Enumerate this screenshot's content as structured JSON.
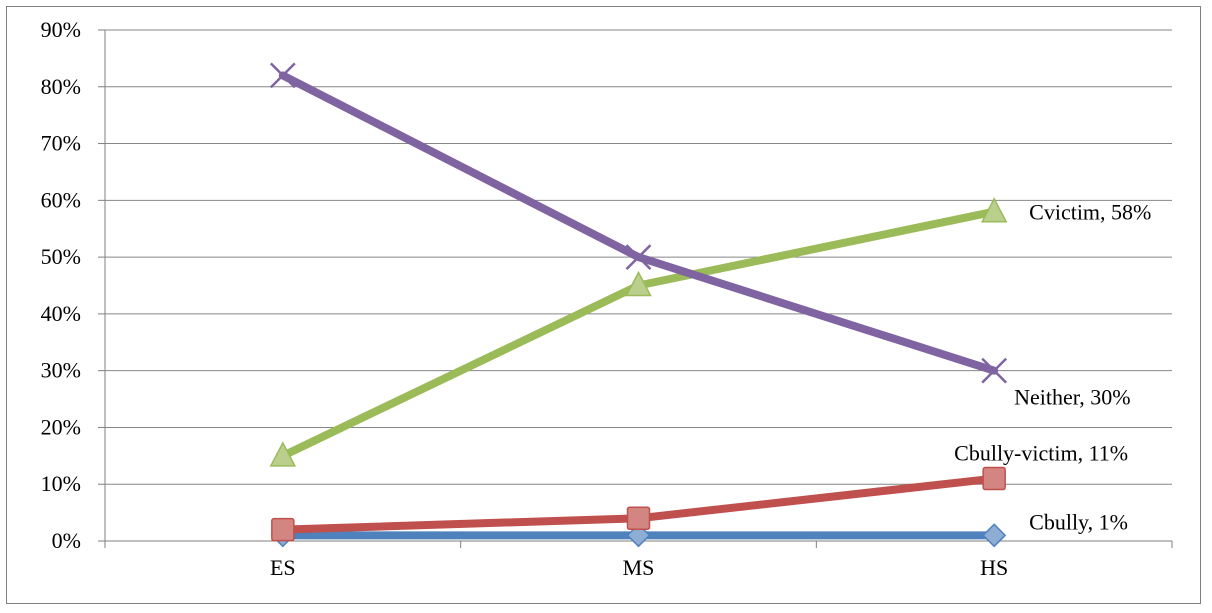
{
  "chart_data": {
    "type": "line",
    "categories": [
      "ES",
      "MS",
      "HS"
    ],
    "ylim": [
      0,
      0.9
    ],
    "yticks": [
      "0%",
      "10%",
      "20%",
      "30%",
      "40%",
      "50%",
      "60%",
      "70%",
      "80%",
      "90%"
    ],
    "grid": true,
    "legend": "none",
    "series": [
      {
        "name": "Cbully",
        "values": [
          0.01,
          0.01,
          0.01
        ],
        "color": "#4f81bd",
        "marker": "diamond",
        "label": "Cbully, 1%"
      },
      {
        "name": "Cbully-victim",
        "values": [
          0.02,
          0.04,
          0.11
        ],
        "color": "#c0504d",
        "marker": "square",
        "label": "Cbully-victim, 11%"
      },
      {
        "name": "Cvictim",
        "values": [
          0.15,
          0.45,
          0.58
        ],
        "color": "#9bbb59",
        "marker": "triangle",
        "label": "Cvictim, 58%"
      },
      {
        "name": "Neither",
        "values": [
          0.82,
          0.5,
          0.3
        ],
        "color": "#8064a2",
        "marker": "x",
        "label": "Neither, 30%"
      }
    ]
  }
}
